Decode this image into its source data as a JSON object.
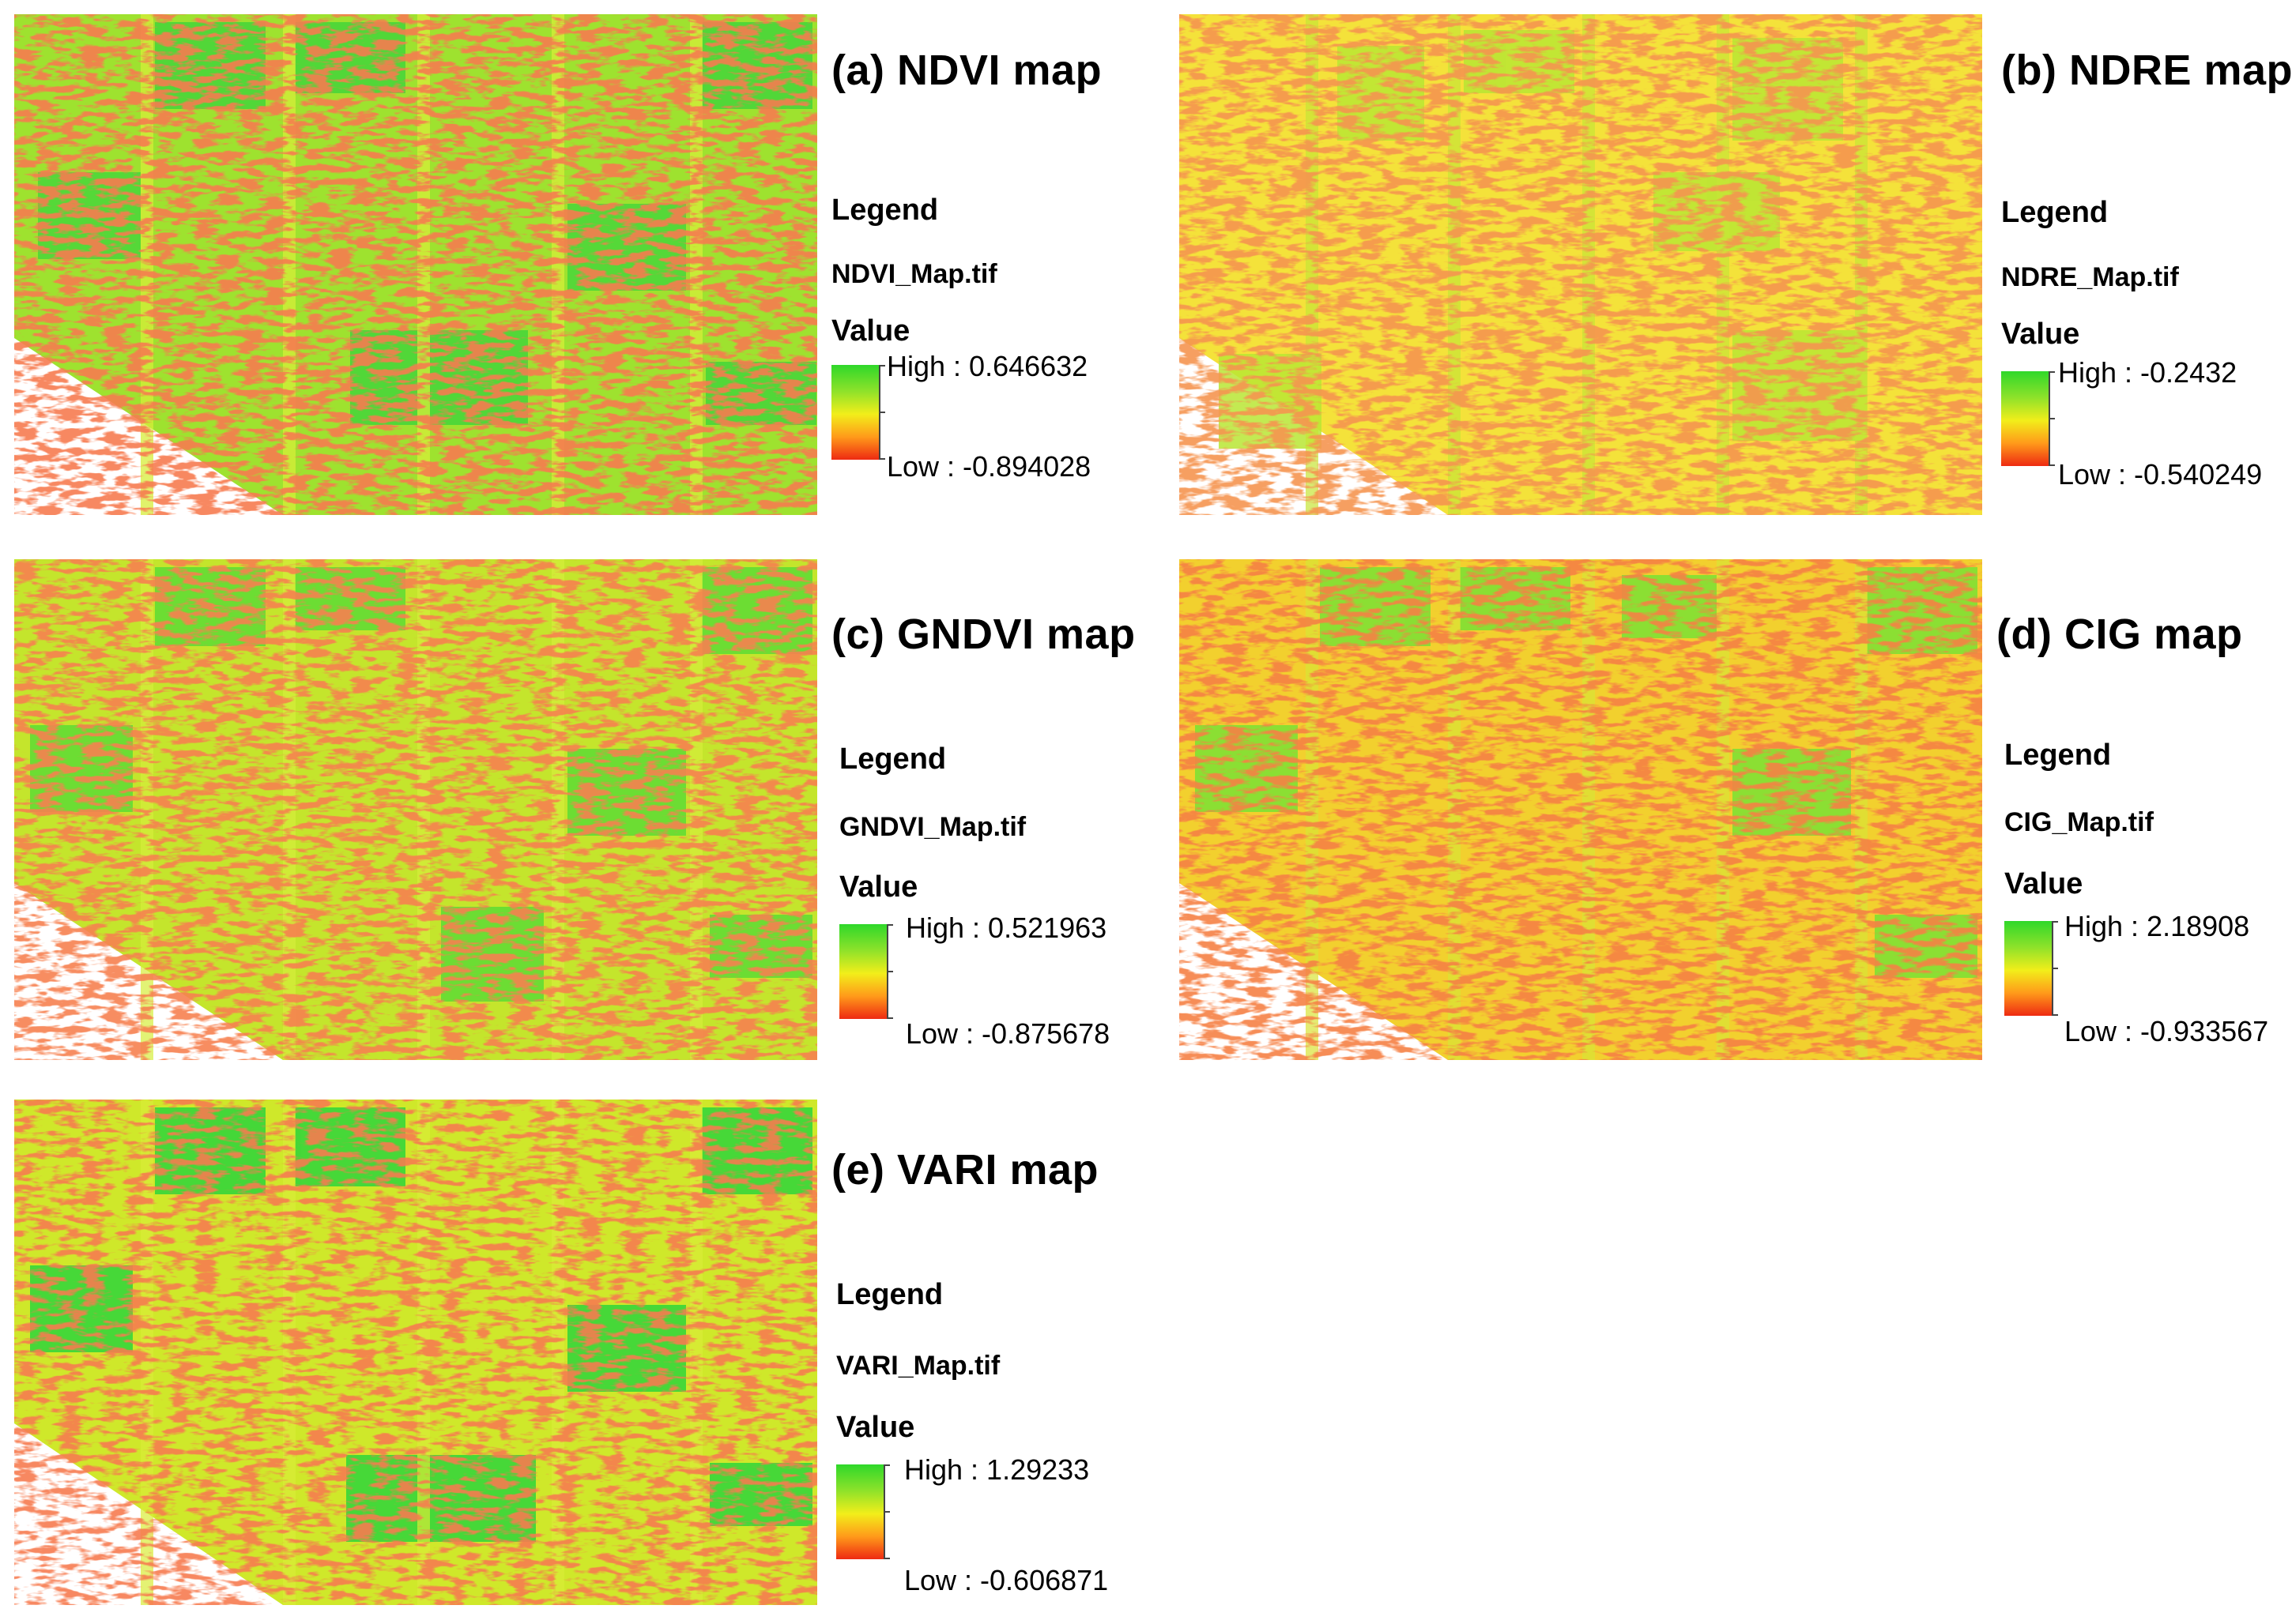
{
  "figure": {
    "panels": [
      {
        "id": "a",
        "title": "(a) NDVI map",
        "legend_heading": "Legend",
        "raster": "NDVI_Map.tif",
        "value_label": "Value",
        "high": "High : 0.646632",
        "low": "Low : -0.894028",
        "base_color": "#9ee22f"
      },
      {
        "id": "b",
        "title": "(b) NDRE map",
        "legend_heading": "Legend",
        "raster": "NDRE_Map.tif",
        "value_label": "Value",
        "high": "High : -0.2432",
        "low": "Low : -0.540249",
        "base_color": "#f4e23a"
      },
      {
        "id": "c",
        "title": "(c) GNDVI map",
        "legend_heading": "Legend",
        "raster": "GNDVI_Map.tif",
        "value_label": "Value",
        "high": "High : 0.521963",
        "low": "Low : -0.875678",
        "base_color": "#c4e52c"
      },
      {
        "id": "d",
        "title": "(d) CIG map",
        "legend_heading": "Legend",
        "raster": "CIG_Map.tif",
        "value_label": "Value",
        "high": "High : 2.18908",
        "low": "Low : -0.933567",
        "base_color": "#f2d02e"
      },
      {
        "id": "e",
        "title": "(e) VARI map",
        "legend_heading": "Legend",
        "raster": "VARI_Map.tif",
        "value_label": "Value",
        "high": "High : 1.29233",
        "low": "Low : -0.606871",
        "base_color": "#cfe82a"
      }
    ]
  },
  "colors": {
    "high": "#2fd82a",
    "mid": "#f2ee1a",
    "low": "#ee2a12"
  }
}
